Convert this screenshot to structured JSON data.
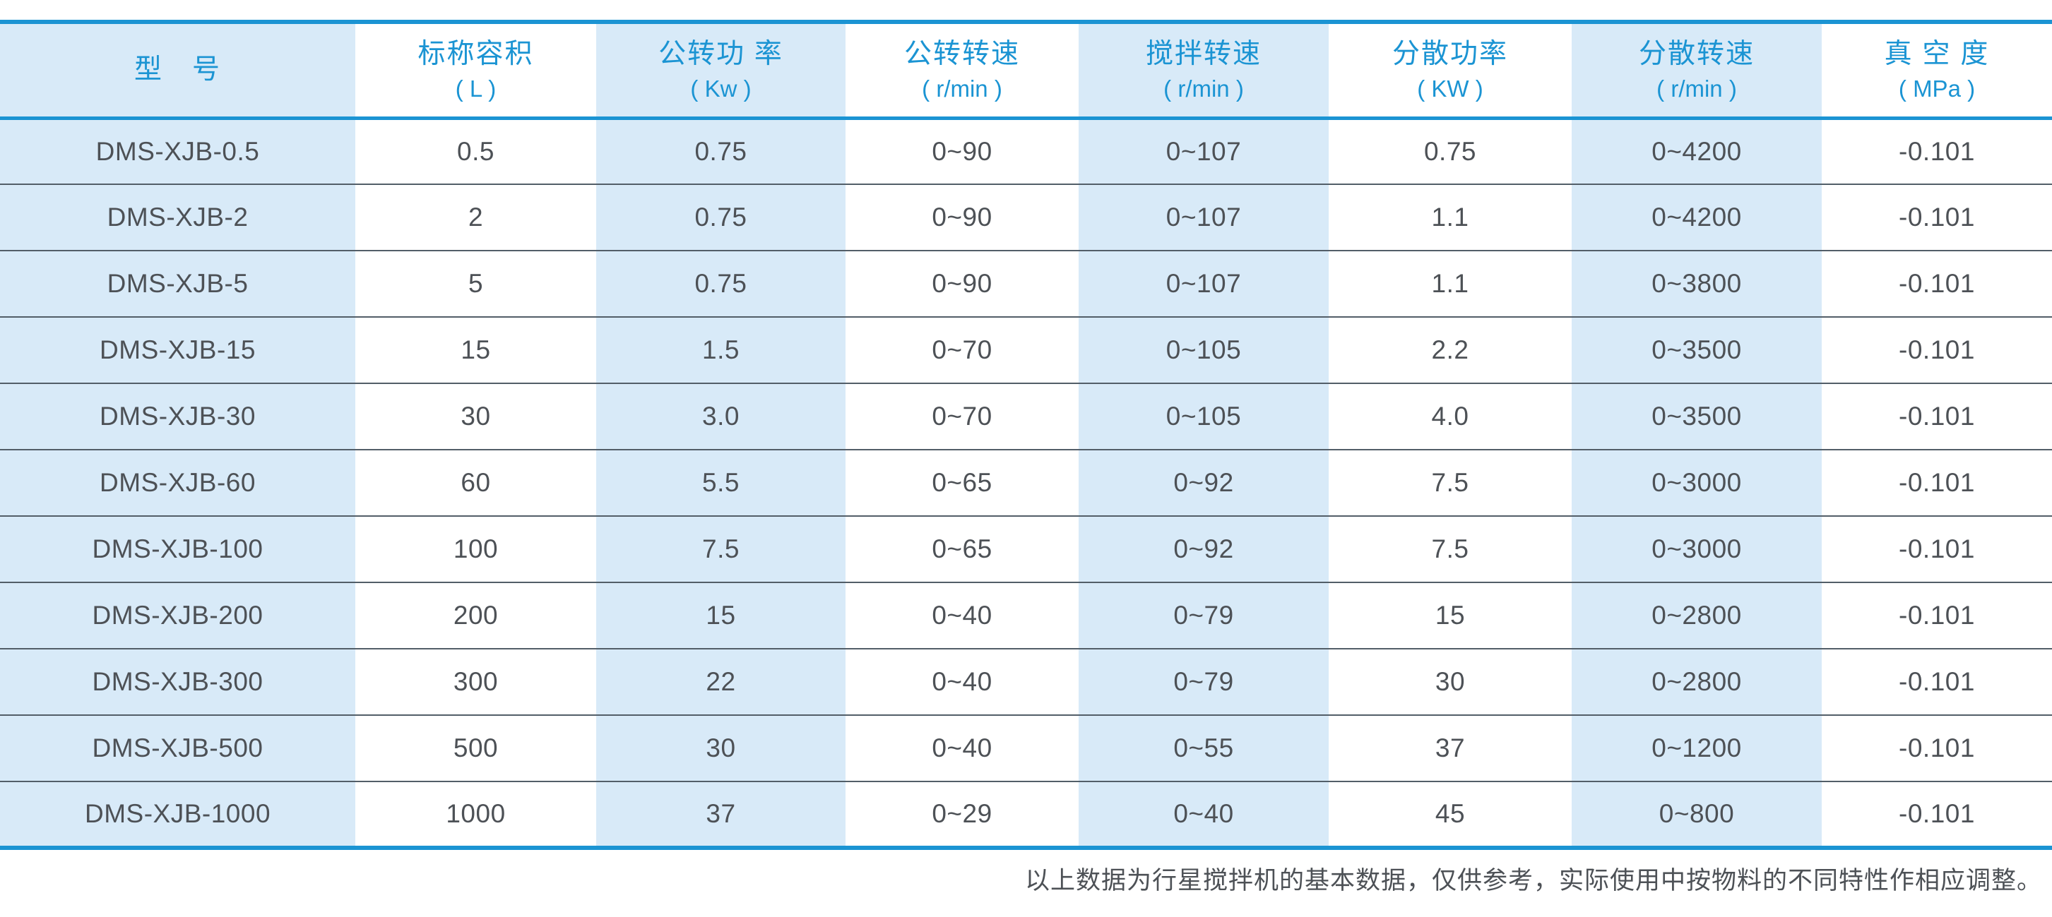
{
  "colors": {
    "accent_blue": "#1b94d3",
    "shaded_column_bg": "#d8eaf8",
    "body_text": "#4d5156",
    "row_divider": "#525e68"
  },
  "table": {
    "columns": [
      {
        "key": "model",
        "label": "型　号",
        "unit": "",
        "shaded": true
      },
      {
        "key": "nominal-capacity",
        "label": "标称容积",
        "unit": "( L )",
        "shaded": false
      },
      {
        "key": "revolution-power",
        "label": "公转功 率",
        "unit": "( Kw )",
        "shaded": true
      },
      {
        "key": "revolution-speed",
        "label": "公转转速",
        "unit": "( r/min )",
        "shaded": false
      },
      {
        "key": "stirring-speed",
        "label": "搅拌转速",
        "unit": "( r/min )",
        "shaded": true
      },
      {
        "key": "dispersion-power",
        "label": "分散功率",
        "unit": "( KW )",
        "shaded": false
      },
      {
        "key": "dispersion-speed",
        "label": "分散转速",
        "unit": "( r/min )",
        "shaded": true
      },
      {
        "key": "vacuum-degree",
        "label": "真 空 度",
        "unit": "( MPa )",
        "shaded": false
      }
    ],
    "rows": [
      [
        "DMS-XJB-0.5",
        "0.5",
        "0.75",
        "0~90",
        "0~107",
        "0.75",
        "0~4200",
        "-0.101"
      ],
      [
        "DMS-XJB-2",
        "2",
        "0.75",
        "0~90",
        "0~107",
        "1.1",
        "0~4200",
        "-0.101"
      ],
      [
        "DMS-XJB-5",
        "5",
        "0.75",
        "0~90",
        "0~107",
        "1.1",
        "0~3800",
        "-0.101"
      ],
      [
        "DMS-XJB-15",
        "15",
        "1.5",
        "0~70",
        "0~105",
        "2.2",
        "0~3500",
        "-0.101"
      ],
      [
        "DMS-XJB-30",
        "30",
        "3.0",
        "0~70",
        "0~105",
        "4.0",
        "0~3500",
        "-0.101"
      ],
      [
        "DMS-XJB-60",
        "60",
        "5.5",
        "0~65",
        "0~92",
        "7.5",
        "0~3000",
        "-0.101"
      ],
      [
        "DMS-XJB-100",
        "100",
        "7.5",
        "0~65",
        "0~92",
        "7.5",
        "0~3000",
        "-0.101"
      ],
      [
        "DMS-XJB-200",
        "200",
        "15",
        "0~40",
        "0~79",
        "15",
        "0~2800",
        "-0.101"
      ],
      [
        "DMS-XJB-300",
        "300",
        "22",
        "0~40",
        "0~79",
        "30",
        "0~2800",
        "-0.101"
      ],
      [
        "DMS-XJB-500",
        "500",
        "30",
        "0~40",
        "0~55",
        "37",
        "0~1200",
        "-0.101"
      ],
      [
        "DMS-XJB-1000",
        "1000",
        "37",
        "0~29",
        "0~40",
        "45",
        "0~800",
        "-0.101"
      ]
    ]
  },
  "footnote": "以上数据为行星搅拌机的基本数据，仅供参考，实际使用中按物料的不同特性作相应调整。"
}
